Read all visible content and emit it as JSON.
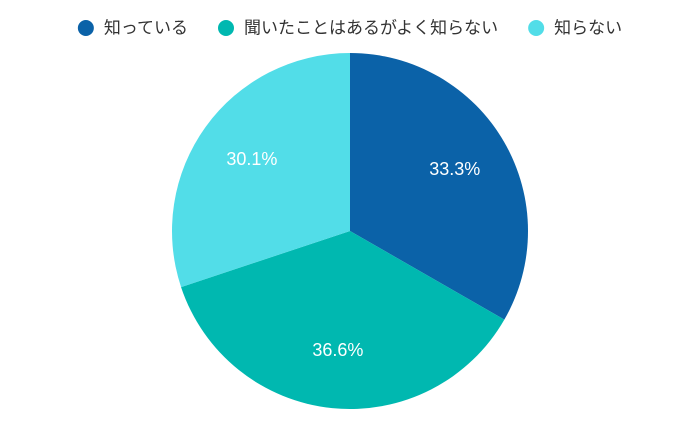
{
  "chart_data": {
    "type": "pie",
    "categories": [
      "知っている",
      "聞いたことはあるがよく知らない",
      "知らない"
    ],
    "values": [
      33.3,
      36.6,
      30.1
    ],
    "value_labels": [
      "33.3%",
      "36.6%",
      "30.1%"
    ],
    "colors": [
      "#0b62a8",
      "#00b8b0",
      "#52dde8"
    ],
    "legend": "top"
  }
}
